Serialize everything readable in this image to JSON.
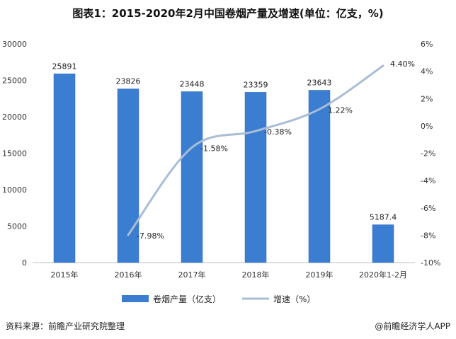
{
  "title": "图表1：2015-2020年2月中国卷烟产量及增速(单位：亿支，%)",
  "source": "资料来源：前瞻产业研究院整理",
  "brand": "@前瞻经济学人APP",
  "colors": {
    "bar": "#3b7dd1",
    "line": "#a9bdd6",
    "bar_edge": "#2d6bbd"
  },
  "chart_data": {
    "type": "bar+line",
    "categories": [
      "2015年",
      "2016年",
      "2017年",
      "2018年",
      "2019年",
      "2020年1-2月"
    ],
    "series": [
      {
        "name": "卷烟产量（亿支）",
        "type": "bar",
        "axis": "left",
        "values": [
          25891,
          23826,
          23448,
          23359,
          23643,
          5187.4
        ],
        "labels": [
          "25891",
          "23826",
          "23448",
          "23359",
          "23643",
          "5187.4"
        ]
      },
      {
        "name": "增速（%）",
        "type": "line",
        "axis": "right",
        "values": [
          null,
          -7.98,
          -1.58,
          -0.38,
          1.22,
          4.4
        ],
        "labels": [
          "",
          "-7.98%",
          "-1.58%",
          "-0.38%",
          "1.22%",
          "4.40%"
        ]
      }
    ],
    "y_left": {
      "min": 0,
      "max": 30000,
      "ticks": [
        0,
        5000,
        10000,
        15000,
        20000,
        25000,
        30000
      ]
    },
    "y_right": {
      "min": -10,
      "max": 6,
      "ticks": [
        "-10%",
        "-8%",
        "-6%",
        "-4%",
        "-2%",
        "0%",
        "2%",
        "4%",
        "6%"
      ]
    },
    "legend_position": "bottom",
    "grid": false
  }
}
